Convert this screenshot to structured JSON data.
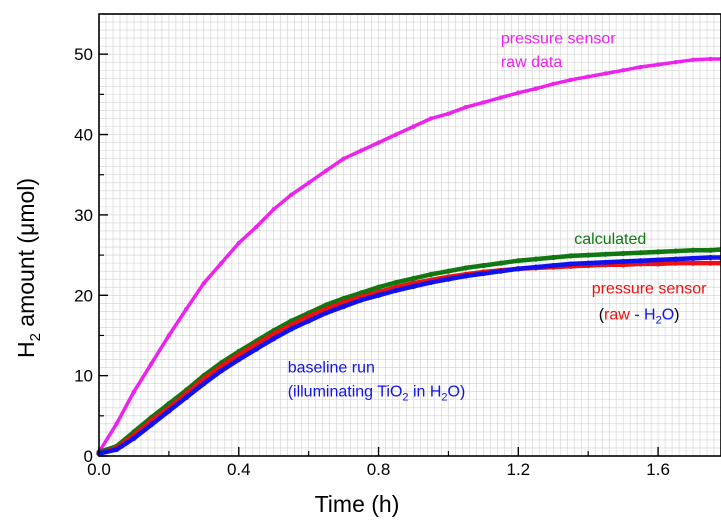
{
  "chart_data": {
    "type": "line",
    "xlabel": "Time (h)",
    "ylabel_main": "H",
    "ylabel_sub": "2",
    "ylabel_rest": " amount (μmol)",
    "xlim": [
      0.0,
      1.78
    ],
    "ylim": [
      0,
      55
    ],
    "x_ticks": [
      0.0,
      0.4,
      0.8,
      1.2,
      1.6
    ],
    "x_tick_labels": [
      "0.0",
      "0.4",
      "0.8",
      "1.2",
      "1.6"
    ],
    "y_ticks": [
      0,
      10,
      20,
      30,
      40,
      50
    ],
    "y_tick_labels": [
      "0",
      "10",
      "20",
      "30",
      "40",
      "50"
    ],
    "grid": true,
    "series": [
      {
        "name": "pressure sensor raw data",
        "color": "#ee22ee",
        "x": [
          0.0,
          0.05,
          0.1,
          0.15,
          0.2,
          0.25,
          0.3,
          0.35,
          0.4,
          0.45,
          0.5,
          0.55,
          0.6,
          0.65,
          0.7,
          0.75,
          0.8,
          0.85,
          0.9,
          0.95,
          1.0,
          1.05,
          1.1,
          1.15,
          1.2,
          1.25,
          1.3,
          1.35,
          1.4,
          1.45,
          1.5,
          1.55,
          1.6,
          1.65,
          1.7,
          1.75,
          1.78
        ],
        "y": [
          0.5,
          4.0,
          8.0,
          11.5,
          15.0,
          18.3,
          21.5,
          24.0,
          26.5,
          28.5,
          30.7,
          32.5,
          34.0,
          35.5,
          37.0,
          38.0,
          39.0,
          40.0,
          41.0,
          42.0,
          42.6,
          43.4,
          44.0,
          44.6,
          45.2,
          45.7,
          46.3,
          46.8,
          47.2,
          47.6,
          48.0,
          48.4,
          48.7,
          49.0,
          49.3,
          49.4,
          49.4
        ]
      },
      {
        "name": "calculated",
        "color": "#117711",
        "x": [
          0.0,
          0.05,
          0.1,
          0.15,
          0.2,
          0.25,
          0.3,
          0.35,
          0.4,
          0.45,
          0.5,
          0.55,
          0.6,
          0.65,
          0.7,
          0.75,
          0.8,
          0.85,
          0.9,
          0.95,
          1.0,
          1.05,
          1.1,
          1.15,
          1.2,
          1.25,
          1.3,
          1.35,
          1.4,
          1.45,
          1.5,
          1.55,
          1.6,
          1.65,
          1.7,
          1.75,
          1.78
        ],
        "y": [
          0.5,
          1.2,
          3.0,
          4.8,
          6.5,
          8.2,
          10.0,
          11.6,
          13.0,
          14.3,
          15.6,
          16.8,
          17.8,
          18.8,
          19.6,
          20.3,
          21.0,
          21.6,
          22.1,
          22.6,
          23.0,
          23.4,
          23.7,
          24.0,
          24.3,
          24.5,
          24.7,
          24.9,
          25.0,
          25.1,
          25.2,
          25.3,
          25.4,
          25.5,
          25.6,
          25.6,
          25.7
        ]
      },
      {
        "name": "pressure sensor (raw - H2O)",
        "color": "#ee1111",
        "x": [
          0.0,
          0.05,
          0.1,
          0.15,
          0.2,
          0.25,
          0.3,
          0.35,
          0.4,
          0.45,
          0.5,
          0.55,
          0.6,
          0.65,
          0.7,
          0.75,
          0.8,
          0.85,
          0.9,
          0.95,
          1.0,
          1.05,
          1.1,
          1.15,
          1.2,
          1.25,
          1.3,
          1.35,
          1.4,
          1.45,
          1.5,
          1.55,
          1.6,
          1.65,
          1.7,
          1.75,
          1.78
        ],
        "y": [
          0.3,
          1.0,
          2.6,
          4.4,
          6.0,
          7.8,
          9.6,
          11.2,
          12.6,
          13.9,
          15.2,
          16.3,
          17.4,
          18.3,
          19.1,
          19.8,
          20.4,
          21.0,
          21.5,
          21.9,
          22.3,
          22.6,
          22.9,
          23.1,
          23.3,
          23.4,
          23.5,
          23.6,
          23.7,
          23.8,
          23.8,
          23.9,
          23.9,
          24.0,
          24.0,
          24.0,
          24.0
        ]
      },
      {
        "name": "baseline run (illuminating TiO2 in H2O)",
        "color": "#1111ee",
        "x": [
          0.0,
          0.05,
          0.1,
          0.15,
          0.2,
          0.25,
          0.3,
          0.35,
          0.4,
          0.45,
          0.5,
          0.55,
          0.6,
          0.65,
          0.7,
          0.75,
          0.8,
          0.85,
          0.9,
          0.95,
          1.0,
          1.05,
          1.1,
          1.15,
          1.2,
          1.25,
          1.3,
          1.35,
          1.4,
          1.45,
          1.5,
          1.55,
          1.6,
          1.65,
          1.7,
          1.75,
          1.78
        ],
        "y": [
          0.3,
          0.8,
          2.2,
          3.9,
          5.6,
          7.3,
          9.0,
          10.6,
          12.0,
          13.3,
          14.6,
          15.8,
          16.8,
          17.8,
          18.6,
          19.4,
          20.0,
          20.6,
          21.1,
          21.6,
          22.0,
          22.4,
          22.7,
          23.0,
          23.3,
          23.5,
          23.7,
          23.9,
          24.0,
          24.1,
          24.2,
          24.3,
          24.4,
          24.5,
          24.6,
          24.7,
          24.7
        ]
      }
    ],
    "annotations": [
      {
        "key": "pink1",
        "text": "pressure sensor",
        "color": "#ee22ee",
        "x": 1.15,
        "y": 51.3
      },
      {
        "key": "pink2",
        "text": "raw data",
        "color": "#ee22ee",
        "x": 1.15,
        "y": 48.4
      },
      {
        "key": "green",
        "text": "calculated",
        "color": "#117711",
        "x": 1.36,
        "y": 26.4
      },
      {
        "key": "red1",
        "text": "pressure sensor",
        "color": "#ee1111",
        "x": 1.41,
        "y": 20.2
      },
      {
        "key": "blue1",
        "text": "baseline run",
        "color": "#1111ee",
        "x": 0.54,
        "y": 10.4
      }
    ],
    "annot_red2": {
      "open": "(",
      "raw": "raw",
      "dash": " - H",
      "sub": "2",
      "o": "O",
      "close": ")",
      "color_black": "#000000",
      "color_red": "#ee1111",
      "color_blue": "#1111ee",
      "x": 1.43,
      "y": 17.0
    },
    "annot_blue2": {
      "pre": "(illuminating TiO",
      "sub1": "2",
      "mid": " in H",
      "sub2": "2",
      "post": "O)",
      "color": "#1111ee",
      "x": 0.54,
      "y": 7.4
    }
  }
}
